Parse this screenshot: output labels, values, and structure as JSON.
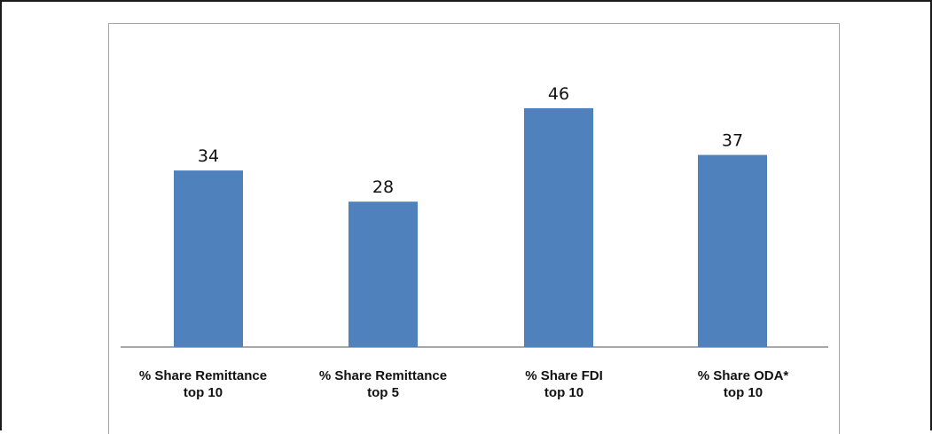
{
  "chart_data": {
    "type": "bar",
    "categories": [
      "% Share Remittance\ntop 10",
      "% Share Remittance\ntop 5",
      "% Share FDI\ntop 10",
      "% Share ODA*\ntop 10"
    ],
    "values": [
      34,
      28,
      46,
      37
    ],
    "data_labels": [
      "34",
      "28",
      "46",
      "37"
    ],
    "title": "",
    "xlabel": "",
    "ylabel": "",
    "ylim": [
      0,
      50
    ],
    "grid": false,
    "legend": "none",
    "bar_color": "#4f81bd"
  }
}
